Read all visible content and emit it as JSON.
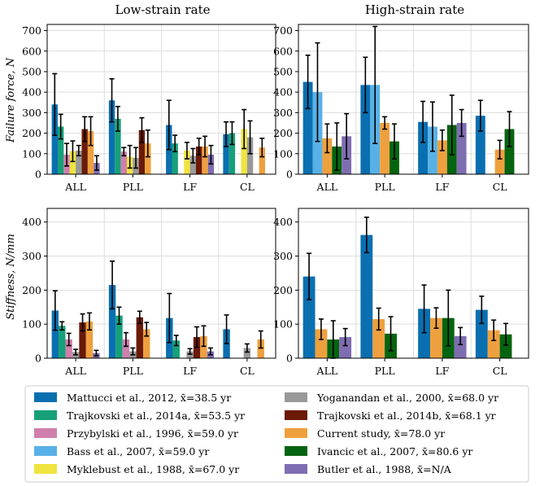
{
  "colors": {
    "mattucci": "#0a6fb0",
    "trajk14a": "#16a07a",
    "przyb": "#d17fac",
    "bass": "#58b1e6",
    "mykle": "#efe440",
    "yogan": "#999999",
    "trajk14b": "#6a1a07",
    "current": "#efa03e",
    "ivancic": "#056410",
    "butler": "#7f6db1"
  },
  "legend": [
    {
      "key": "mattucci",
      "label": "Mattucci et al., 2012, x̄=38.5 yr"
    },
    {
      "key": "trajk14a",
      "label": "Trajkovski et al., 2014a, x̄=53.5 yr"
    },
    {
      "key": "przyb",
      "label": "Przybylski et al., 1996, x̄=59.0 yr"
    },
    {
      "key": "bass",
      "label": "Bass et al., 2007, x̄=59.0 yr"
    },
    {
      "key": "mykle",
      "label": "Myklebust et al., 1988, x̄=67.0 yr"
    },
    {
      "key": "yogan",
      "label": "Yoganandan et al., 2000, x̄=68.0 yr"
    },
    {
      "key": "trajk14b",
      "label": "Trajkovski et al., 2014b, x̄=68.1 yr"
    },
    {
      "key": "current",
      "label": "Current study, x̄=78.0 yr"
    },
    {
      "key": "ivancic",
      "label": "Ivancic et al., 2007, x̄=80.6 yr"
    },
    {
      "key": "butler",
      "label": "Butler et al., 1988, x̄=N/A"
    }
  ],
  "column_titles": [
    "Low-strain rate",
    "High-strain rate"
  ],
  "row_labels": [
    "Failure force, N",
    "Stiffness, N/mm"
  ],
  "chart_data": [
    {
      "type": "bar",
      "title": "Low-strain rate",
      "ylabel": "Failure force, N",
      "ylim": [
        0,
        730
      ],
      "yticks": [
        0,
        100,
        200,
        300,
        400,
        500,
        600,
        700
      ],
      "categories": [
        "ALL",
        "PLL",
        "LF",
        "CL"
      ],
      "grid": true,
      "series": [
        {
          "key": "mattucci",
          "values": [
            340,
            360,
            240,
            195
          ],
          "errors": [
            150,
            105,
            120,
            60
          ]
        },
        {
          "key": "trajk14a",
          "values": [
            232,
            270,
            150,
            200
          ],
          "errors": [
            60,
            60,
            40,
            55
          ]
        },
        {
          "key": "przyb",
          "values": [
            95,
            110,
            null,
            null
          ],
          "errors": [
            55,
            20,
            null,
            null
          ]
        },
        {
          "key": "mykle",
          "values": [
            112,
            85,
            115,
            220
          ],
          "errors": [
            50,
            55,
            40,
            95
          ]
        },
        {
          "key": "yogan",
          "values": [
            115,
            80,
            90,
            180
          ],
          "errors": [
            25,
            50,
            35,
            80
          ]
        },
        {
          "key": "trajk14b",
          "values": [
            220,
            215,
            135,
            null
          ],
          "errors": [
            60,
            60,
            40,
            null
          ]
        },
        {
          "key": "current",
          "values": [
            210,
            150,
            135,
            130
          ],
          "errors": [
            70,
            65,
            50,
            45
          ]
        },
        {
          "key": "butler",
          "values": [
            55,
            null,
            95,
            null
          ],
          "errors": [
            35,
            null,
            45,
            null
          ]
        }
      ]
    },
    {
      "type": "bar",
      "title": "High-strain rate",
      "ylabel": "",
      "ylim": [
        0,
        730
      ],
      "yticks": [
        0,
        100,
        200,
        300,
        400,
        500,
        600,
        700
      ],
      "categories": [
        "ALL",
        "PLL",
        "LF",
        "CL"
      ],
      "grid": true,
      "series": [
        {
          "key": "mattucci",
          "values": [
            450,
            435,
            255,
            285
          ],
          "errors": [
            130,
            135,
            100,
            75
          ]
        },
        {
          "key": "bass",
          "values": [
            400,
            435,
            232,
            null
          ],
          "errors": [
            240,
            285,
            120,
            null
          ]
        },
        {
          "key": "current",
          "values": [
            175,
            250,
            165,
            120
          ],
          "errors": [
            70,
            30,
            50,
            45
          ]
        },
        {
          "key": "ivancic",
          "values": [
            135,
            160,
            240,
            220
          ],
          "errors": [
            115,
            85,
            145,
            85
          ]
        },
        {
          "key": "butler",
          "values": [
            185,
            null,
            250,
            null
          ],
          "errors": [
            110,
            null,
            65,
            null
          ]
        }
      ]
    },
    {
      "type": "bar",
      "title": "",
      "ylabel": "Stiffness, N/mm",
      "ylim": [
        0,
        440
      ],
      "yticks": [
        0,
        100,
        200,
        300,
        400
      ],
      "categories": [
        "ALL",
        "PLL",
        "LF",
        "CL"
      ],
      "grid": true,
      "series": [
        {
          "key": "mattucci",
          "values": [
            140,
            215,
            118,
            85
          ],
          "errors": [
            58,
            70,
            72,
            42
          ]
        },
        {
          "key": "trajk14a",
          "values": [
            95,
            125,
            52,
            null
          ],
          "errors": [
            12,
            25,
            15,
            null
          ]
        },
        {
          "key": "przyb",
          "values": [
            55,
            55,
            null,
            null
          ],
          "errors": [
            18,
            20,
            null,
            null
          ]
        },
        {
          "key": "yogan",
          "values": [
            18,
            20,
            20,
            30
          ],
          "errors": [
            8,
            10,
            8,
            12
          ]
        },
        {
          "key": "trajk14b",
          "values": [
            105,
            120,
            62,
            null
          ],
          "errors": [
            25,
            18,
            30,
            null
          ]
        },
        {
          "key": "current",
          "values": [
            108,
            85,
            65,
            55
          ],
          "errors": [
            25,
            20,
            30,
            25
          ]
        },
        {
          "key": "butler",
          "values": [
            15,
            null,
            20,
            null
          ],
          "errors": [
            8,
            null,
            10,
            null
          ]
        }
      ]
    },
    {
      "type": "bar",
      "title": "",
      "ylabel": "",
      "ylim": [
        0,
        440
      ],
      "yticks": [
        0,
        100,
        200,
        300,
        400
      ],
      "categories": [
        "ALL",
        "PLL",
        "LF",
        "CL"
      ],
      "grid": true,
      "series": [
        {
          "key": "mattucci",
          "values": [
            240,
            362,
            145,
            142
          ],
          "errors": [
            68,
            52,
            70,
            40
          ]
        },
        {
          "key": "current",
          "values": [
            85,
            115,
            118,
            82
          ],
          "errors": [
            30,
            32,
            30,
            30
          ]
        },
        {
          "key": "ivancic",
          "values": [
            55,
            72,
            118,
            70
          ],
          "errors": [
            55,
            50,
            82,
            32
          ]
        },
        {
          "key": "butler",
          "values": [
            62,
            null,
            65,
            null
          ],
          "errors": [
            25,
            null,
            25,
            null
          ]
        }
      ]
    }
  ]
}
